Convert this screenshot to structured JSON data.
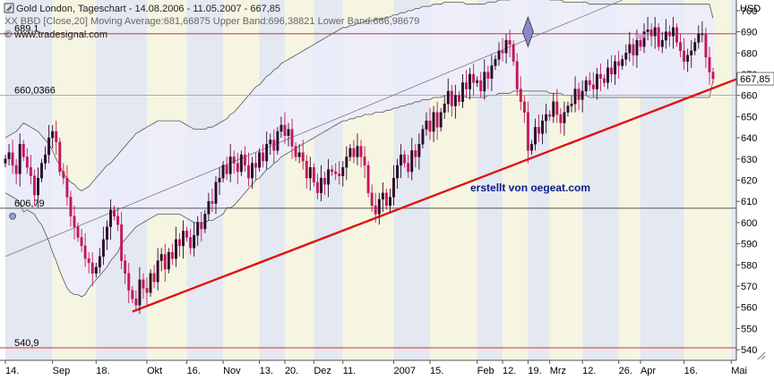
{
  "header": {
    "title": "Gold London, Tageschart - 14.08.2006 - 11.05.2007 - 667,85",
    "indicator": "XX BBD [Close,20] Moving Average:681,66875 Upper Band:696,38821 Lower Band:666,98679",
    "source": "© www.tradesignal.com",
    "currency": "USD"
  },
  "annotations": {
    "creator": "erstellt von oegeat.com",
    "last_price": "667,85",
    "level_top": "689,1",
    "level_mid": "660,0366",
    "level_low": "606,79",
    "level_bottom": "540,9"
  },
  "colors": {
    "up_candle": "#2a0a2a",
    "down_candle": "#c2185b",
    "band_fill": "#ececfb",
    "band_line": "#555555",
    "trendline": "#e01010",
    "level_line": "#d32f2f",
    "stripe_a": "#e4e8f1",
    "stripe_b": "#f5f5e2",
    "header_text": "#222222"
  },
  "chart_data": {
    "type": "candlestick",
    "title": "Gold London, Tageschart - 14.08.2006 - 11.05.2007 - 667,85",
    "ylabel": "USD",
    "ylim": [
      535,
      705
    ],
    "y_ticks": [
      540,
      550,
      560,
      570,
      580,
      590,
      600,
      610,
      620,
      630,
      640,
      650,
      660,
      670,
      680,
      690,
      700
    ],
    "x_labels": [
      "14.",
      "Sep",
      "18.",
      "Okt",
      "16.",
      "Nov",
      "13.",
      "20.",
      "Dez",
      "11.",
      "2007",
      "15.",
      "Feb",
      "12.",
      "19.",
      "Mrz",
      "12.",
      "26.",
      "Apr",
      "16.",
      "Mai"
    ],
    "x_label_index": [
      0,
      13,
      25,
      39,
      50,
      60,
      70,
      77,
      85,
      93,
      107,
      117,
      130,
      137,
      144,
      150,
      159,
      169,
      175,
      187,
      200
    ],
    "close": [
      630,
      633,
      627,
      623,
      637,
      631,
      626,
      622,
      613,
      621,
      628,
      632,
      640,
      643,
      638,
      624,
      621,
      612,
      603,
      598,
      593,
      589,
      583,
      581,
      576,
      579,
      584,
      592,
      598,
      606,
      603,
      599,
      582,
      576,
      568,
      564,
      561,
      573,
      569,
      567,
      576,
      572,
      582,
      585,
      578,
      586,
      583,
      592,
      589,
      596,
      593,
      588,
      594,
      600,
      597,
      604,
      610,
      609,
      619,
      621,
      627,
      623,
      631,
      628,
      624,
      632,
      627,
      621,
      628,
      626,
      633,
      629,
      637,
      639,
      634,
      643,
      646,
      641,
      644,
      636,
      631,
      633,
      629,
      621,
      626,
      619,
      614,
      621,
      618,
      625,
      624,
      623,
      622,
      626,
      631,
      635,
      631,
      636,
      631,
      627,
      614,
      608,
      604,
      611,
      614,
      608,
      612,
      621,
      627,
      632,
      628,
      624,
      634,
      631,
      637,
      644,
      648,
      643,
      652,
      645,
      652,
      656,
      662,
      655,
      660,
      657,
      666,
      663,
      670,
      666,
      667,
      662,
      671,
      668,
      674,
      677,
      681,
      680,
      686,
      684,
      676,
      663,
      657,
      652,
      634,
      637,
      645,
      642,
      648,
      651,
      650,
      657,
      651,
      647,
      652,
      655,
      656,
      663,
      658,
      662,
      667,
      665,
      663,
      670,
      668,
      666,
      673,
      670,
      676,
      674,
      677,
      680,
      684,
      679,
      686,
      683,
      690,
      691,
      688,
      692,
      683,
      686,
      690,
      688,
      692,
      685,
      681,
      676,
      679,
      681,
      685,
      689,
      689,
      678,
      671,
      667.85
    ],
    "band_mid": [
      627,
      627,
      627,
      627,
      627,
      626,
      626,
      625,
      624,
      622,
      620,
      617,
      614,
      610,
      606,
      602,
      598,
      595,
      593,
      592,
      591,
      590,
      591,
      593,
      595,
      597,
      599,
      601,
      603,
      605,
      607,
      609,
      612,
      614,
      616,
      618,
      620,
      621,
      622,
      623,
      624,
      625,
      626,
      626,
      626,
      626,
      626,
      626,
      626,
      625,
      624,
      623,
      622,
      622,
      622,
      622,
      623,
      623,
      624,
      625,
      626,
      628,
      629,
      630,
      632,
      634,
      636,
      638,
      640,
      642,
      643,
      645,
      647,
      648,
      650,
      651,
      653,
      654,
      655,
      656,
      657,
      658,
      659,
      660,
      661,
      662,
      663,
      664,
      665,
      666,
      667,
      668,
      669,
      670,
      670,
      671,
      671,
      672,
      672,
      673,
      673,
      673,
      674,
      674,
      674,
      675,
      675,
      676,
      676,
      677,
      677,
      678,
      678,
      679,
      679,
      680,
      680,
      680,
      681,
      681,
      681,
      682,
      682,
      682,
      682,
      682,
      682,
      681,
      681,
      681,
      681,
      681,
      681,
      682,
      682,
      682,
      683,
      683,
      683,
      683,
      684,
      684,
      684,
      684,
      684,
      684,
      684,
      684,
      684,
      684,
      683,
      683,
      683,
      683,
      682,
      682,
      682,
      682,
      682,
      682,
      682,
      681,
      681,
      681,
      681,
      681,
      681,
      681,
      681,
      681,
      681,
      681,
      681,
      681,
      681,
      681,
      681,
      681,
      681,
      681,
      681,
      681,
      681,
      681,
      681,
      681,
      681,
      681,
      681,
      681,
      681,
      681,
      681,
      681,
      681,
      681.67
    ],
    "upper_band": [
      640,
      641,
      642,
      643,
      645,
      647,
      646,
      645,
      644,
      643,
      641,
      639,
      637,
      634,
      630,
      627,
      623,
      621,
      619,
      618,
      616,
      615,
      616,
      617,
      619,
      621,
      623,
      625,
      627,
      628,
      630,
      632,
      634,
      636,
      638,
      640,
      642,
      643,
      644,
      645,
      646,
      647,
      648,
      648,
      648,
      648,
      648,
      648,
      648,
      647,
      646,
      645,
      644,
      644,
      644,
      644,
      645,
      645,
      646,
      647,
      648,
      649,
      651,
      652,
      654,
      656,
      658,
      660,
      662,
      664,
      665,
      667,
      669,
      670,
      672,
      673,
      675,
      676,
      677,
      678,
      679,
      680,
      681,
      682,
      683,
      684,
      685,
      686,
      687,
      688,
      689,
      690,
      691,
      692,
      692,
      693,
      693,
      694,
      694,
      695,
      695,
      695,
      696,
      696,
      696,
      697,
      697,
      698,
      698,
      699,
      699,
      700,
      700,
      701,
      701,
      702,
      702,
      702,
      703,
      703,
      703,
      704,
      704,
      704,
      704,
      704,
      704,
      703,
      703,
      703,
      703,
      703,
      703,
      704,
      704,
      704,
      705,
      705,
      705,
      705,
      706,
      706,
      706,
      706,
      706,
      706,
      706,
      706,
      706,
      706,
      705,
      705,
      705,
      705,
      704,
      704,
      704,
      704,
      704,
      704,
      704,
      703,
      703,
      703,
      703,
      703,
      703,
      703,
      703,
      703,
      703,
      703,
      703,
      703,
      703,
      703,
      703,
      703,
      703,
      703,
      703,
      703,
      703,
      703,
      703,
      703,
      703,
      703,
      703,
      703,
      703,
      703,
      703,
      703,
      703,
      696.39
    ],
    "lower_band": [
      614,
      613,
      612,
      611,
      609,
      605,
      606,
      605,
      604,
      601,
      599,
      595,
      591,
      586,
      582,
      577,
      573,
      569,
      567,
      566,
      566,
      565,
      566,
      569,
      571,
      573,
      575,
      577,
      579,
      582,
      584,
      586,
      590,
      592,
      594,
      596,
      598,
      599,
      600,
      601,
      602,
      603,
      604,
      604,
      604,
      604,
      604,
      604,
      604,
      603,
      602,
      601,
      600,
      600,
      600,
      600,
      601,
      601,
      602,
      603,
      604,
      607,
      607,
      608,
      610,
      612,
      614,
      616,
      618,
      620,
      621,
      623,
      625,
      626,
      628,
      629,
      631,
      632,
      633,
      634,
      635,
      636,
      637,
      638,
      639,
      640,
      641,
      642,
      643,
      644,
      645,
      646,
      647,
      648,
      648,
      649,
      649,
      650,
      650,
      651,
      651,
      651,
      652,
      652,
      652,
      653,
      653,
      654,
      654,
      655,
      655,
      656,
      656,
      657,
      657,
      658,
      658,
      658,
      659,
      659,
      659,
      660,
      660,
      660,
      660,
      660,
      660,
      659,
      659,
      659,
      659,
      659,
      659,
      660,
      660,
      660,
      661,
      661,
      661,
      661,
      662,
      662,
      662,
      662,
      662,
      662,
      662,
      662,
      662,
      662,
      661,
      661,
      661,
      661,
      660,
      660,
      660,
      660,
      660,
      660,
      660,
      659,
      659,
      659,
      659,
      659,
      659,
      659,
      659,
      659,
      659,
      659,
      659,
      659,
      659,
      659,
      659,
      659,
      659,
      659,
      659,
      659,
      659,
      659,
      659,
      659,
      659,
      659,
      659,
      659,
      659,
      659,
      659,
      659,
      659,
      666.99
    ],
    "trend_support": {
      "from": [
        35,
        558
      ],
      "to": [
        205,
        670
      ]
    },
    "trend_upper": {
      "from": [
        0,
        584
      ],
      "to": [
        170,
        705
      ]
    },
    "levels": [
      689.1,
      660.0366,
      606.79,
      540.9
    ],
    "grid": false,
    "legend": "none"
  }
}
